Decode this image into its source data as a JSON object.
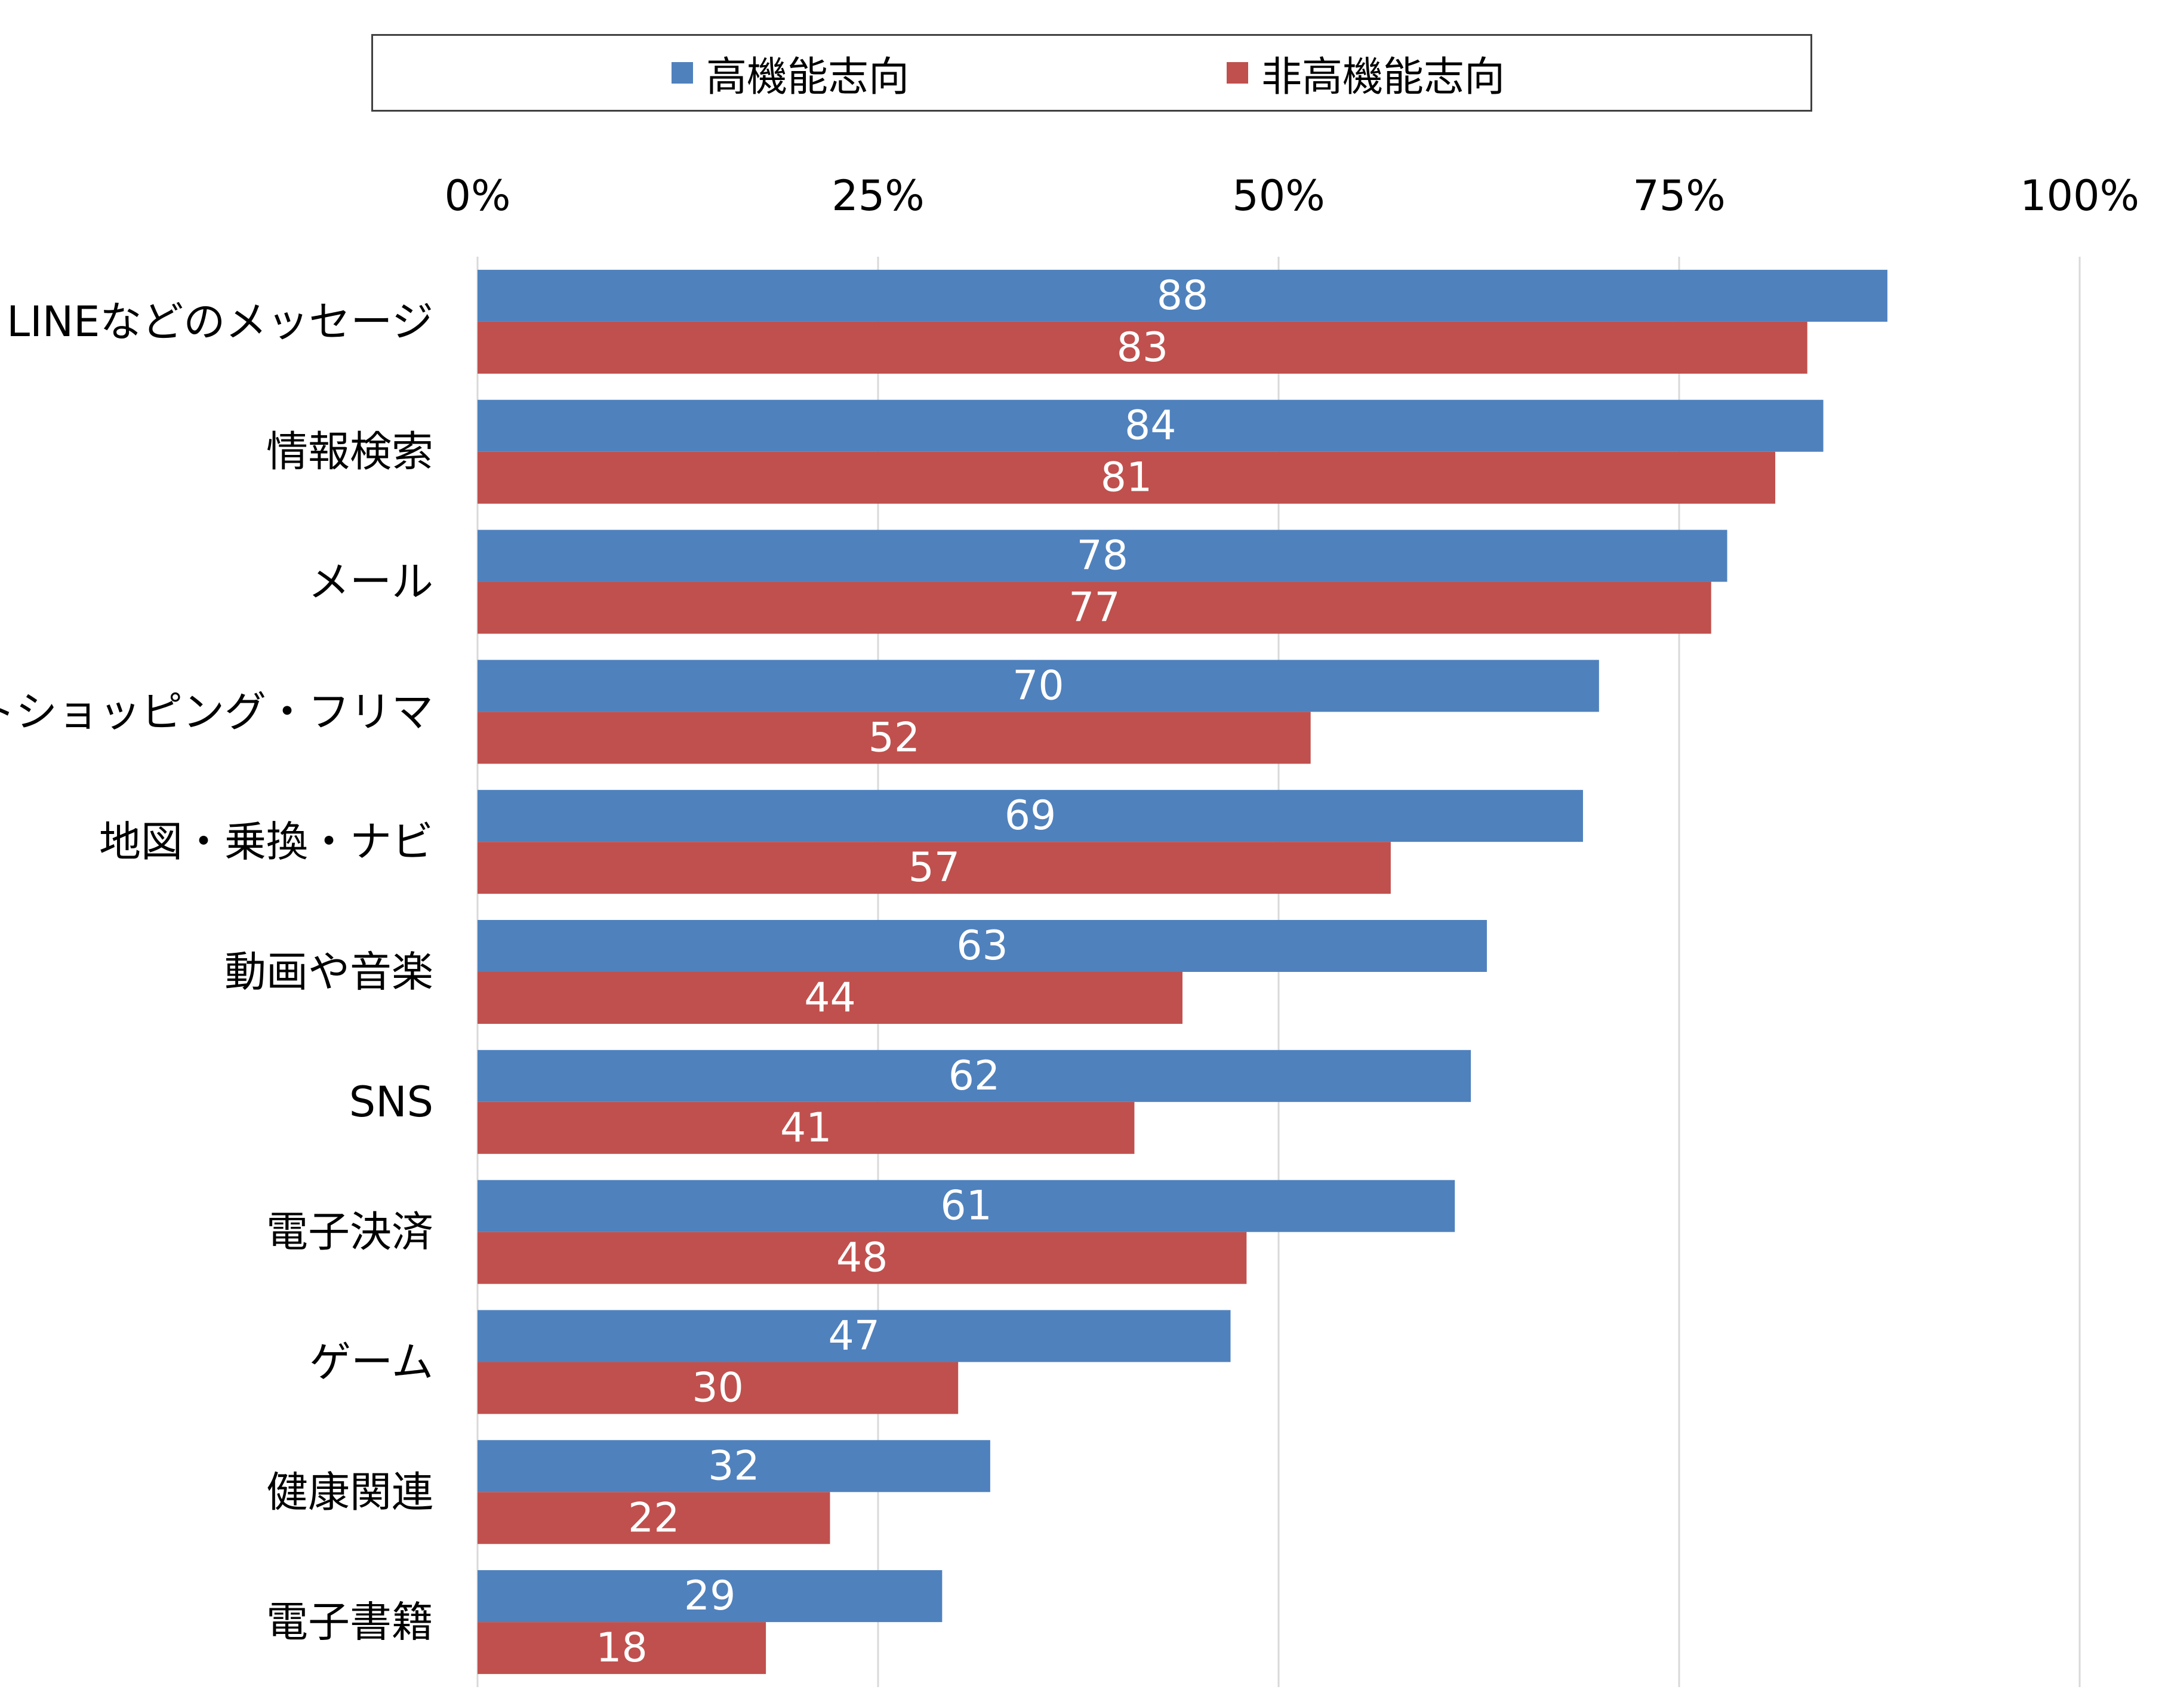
{
  "legend": {
    "series1": "高機能志向",
    "series2": "非高機能志向"
  },
  "colors": {
    "series1": "#4F81BD",
    "series2": "#C0504D",
    "grid": "#D9D9D9"
  },
  "chart_data": {
    "type": "bar",
    "orientation": "horizontal",
    "categories": [
      "LINEなどのメッセージ",
      "情報検索",
      "メール",
      "ネットショッピング・フリマ",
      "地図・乗換・ナビ",
      "動画や音楽",
      "SNS",
      "電子決済",
      "ゲーム",
      "健康関連",
      "電子書籍"
    ],
    "series": [
      {
        "name": "高機能志向",
        "values": [
          88,
          84,
          78,
          70,
          69,
          63,
          62,
          61,
          47,
          32,
          29
        ]
      },
      {
        "name": "非高機能志向",
        "values": [
          83,
          81,
          77,
          52,
          57,
          44,
          41,
          48,
          30,
          22,
          18
        ]
      }
    ],
    "xlim": [
      0,
      100
    ],
    "xticks": [
      0,
      25,
      50,
      75,
      100
    ],
    "xtick_labels": [
      "0%",
      "25%",
      "50%",
      "75%",
      "100%"
    ],
    "x_axis_position": "top",
    "grid": true,
    "legend_position": "top"
  }
}
